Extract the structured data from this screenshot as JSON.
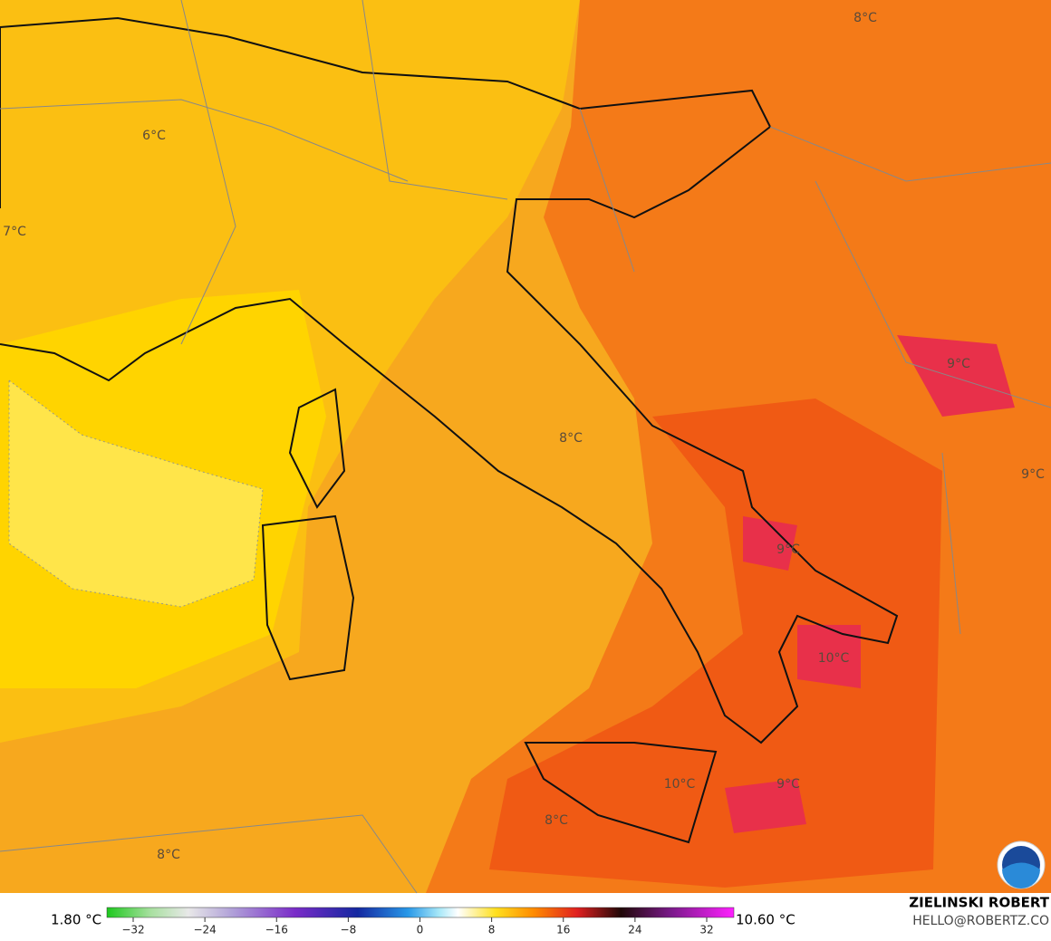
{
  "map": {
    "labels": [
      "8°C",
      "6°C",
      "7°C",
      "9°C",
      "8°C",
      "9°C",
      "9°C",
      "10°C",
      "10°C",
      "9°C",
      "8°C",
      "8°C"
    ],
    "colorbar": {
      "min_label": "1.80 °C",
      "max_label": "10.60 °C",
      "ticks": [
        "−32",
        "−24",
        "−16",
        "−8",
        "0",
        "8",
        "16",
        "24",
        "32"
      ]
    },
    "author": {
      "name": "ZIELINSKI ROBERT",
      "email": "HELLO@ROBERTZ.CO"
    }
  }
}
